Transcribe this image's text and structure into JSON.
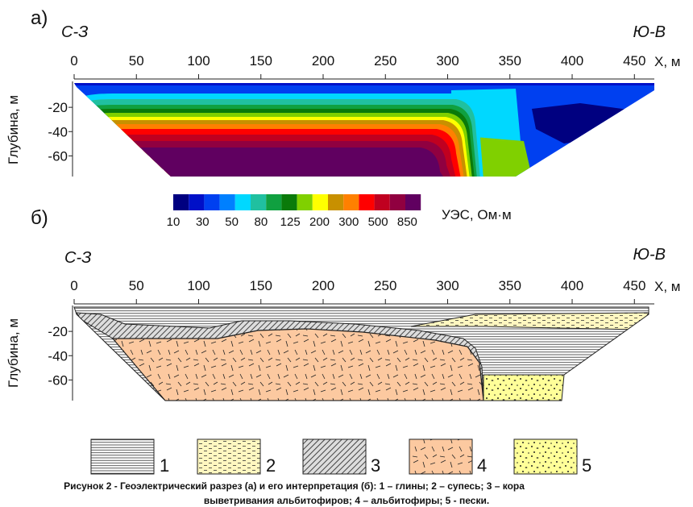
{
  "panel_a": {
    "label": "а)",
    "left_label": "С-З",
    "right_label": "Ю-В",
    "x_label": "X, м",
    "y_label": "Глубина, м",
    "xticks": [
      0,
      50,
      100,
      150,
      200,
      250,
      300,
      350,
      400,
      450
    ],
    "xlim": [
      0,
      466
    ],
    "yticks": [
      -20,
      -40,
      -60
    ],
    "ylim": [
      -77,
      0
    ]
  },
  "colorbar": {
    "title": "УЭС, Ом·м",
    "labels": [
      10,
      30,
      50,
      80,
      125,
      200,
      300,
      500,
      850
    ],
    "colors": [
      "#000080",
      "#0010c8",
      "#0040f0",
      "#0080ff",
      "#00d8ff",
      "#20c0a0",
      "#10a040",
      "#0a7a0a",
      "#80d000",
      "#ffff00",
      "#c89000",
      "#ff8000",
      "#ff0000",
      "#c00020",
      "#900040",
      "#600060"
    ]
  },
  "panel_b": {
    "label": "б)",
    "left_label": "С-З",
    "right_label": "Ю-В",
    "x_label": "X, м",
    "y_label": "Глубина, м",
    "xticks": [
      0,
      50,
      100,
      150,
      200,
      250,
      300,
      350,
      400,
      450
    ],
    "xlim": [
      0,
      466
    ],
    "yticks": [
      -20,
      -40,
      -60
    ],
    "ylim": [
      -77,
      0
    ]
  },
  "legend": [
    "1",
    "2",
    "3",
    "4",
    "5"
  ],
  "caption": [
    "Рисунок 2 - Геоэлектрический разрез (а) и его интерпретация (б): 1 – глины; 2 – супесь; 3 – кора",
    "выветривания альбитофиров; 4 – альбитофиры; 5 - пески."
  ]
}
